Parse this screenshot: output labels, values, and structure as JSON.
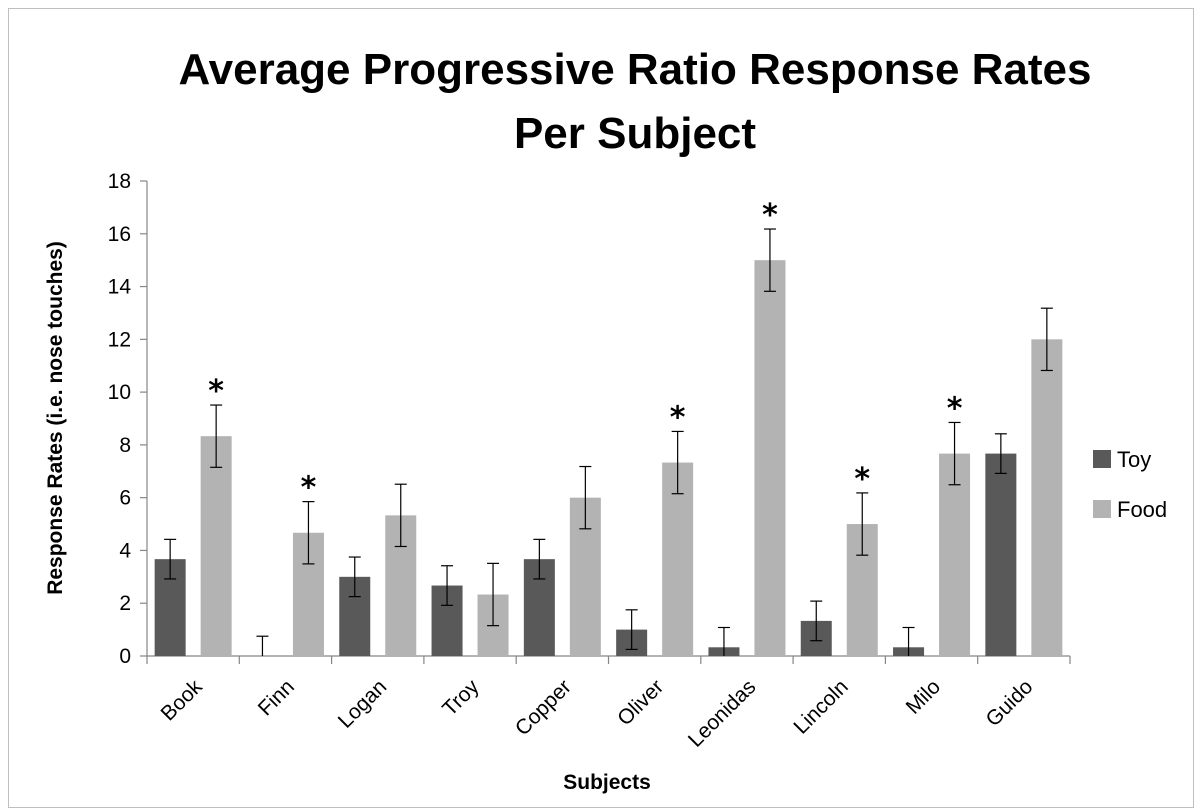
{
  "chart_data": {
    "type": "bar",
    "title_line1": "Average Progressive Ratio Response Rates",
    "title_line2": "Per Subject",
    "xlabel": "Subjects",
    "ylabel": "Response Rates (i.e. nose touches)",
    "ylim": [
      0,
      18
    ],
    "yticks": [
      "0",
      "2",
      "4",
      "6",
      "8",
      "10",
      "12",
      "14",
      "16",
      "18"
    ],
    "categories": [
      "Book",
      "Finn",
      "Logan",
      "Troy",
      "Copper",
      "Oliver",
      "Leonidas",
      "Lincoln",
      "Milo",
      "Guido"
    ],
    "series": [
      {
        "name": "Toy",
        "color": "#595959",
        "values": [
          3.67,
          0,
          3.0,
          2.67,
          3.67,
          1.0,
          0.33,
          1.33,
          0.33,
          7.67
        ],
        "errors": [
          0.75,
          0.75,
          0.75,
          0.75,
          0.75,
          0.75,
          0.75,
          0.75,
          0.75,
          0.75
        ]
      },
      {
        "name": "Food",
        "color": "#b3b3b3",
        "values": [
          8.33,
          4.67,
          5.33,
          2.33,
          6.0,
          7.33,
          15.0,
          5.0,
          7.67,
          12.0
        ],
        "errors": [
          1.18,
          1.18,
          1.18,
          1.18,
          1.18,
          1.18,
          1.18,
          1.18,
          1.18,
          1.18
        ]
      }
    ],
    "significance": {
      "marker": "*",
      "series": "Food",
      "categories": [
        "Book",
        "Finn",
        "Oliver",
        "Leonidas",
        "Lincoln",
        "Milo"
      ]
    },
    "legend_position": "right",
    "grid": false
  }
}
